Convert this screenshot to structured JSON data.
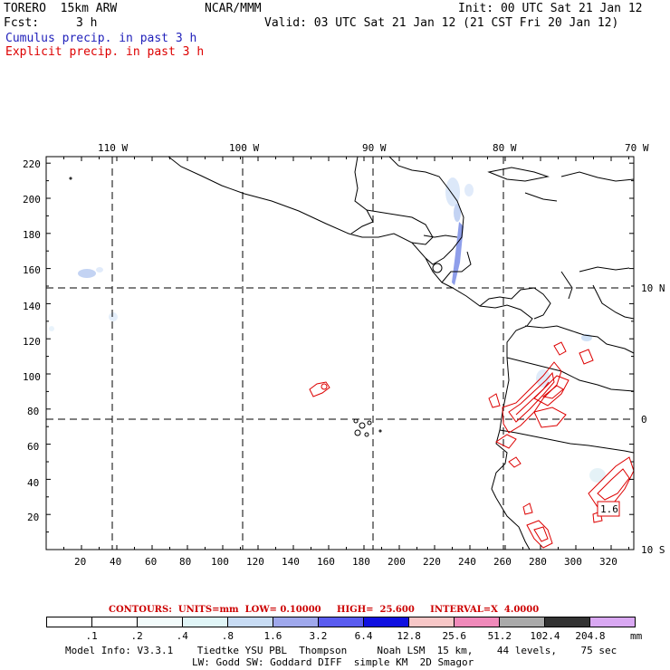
{
  "header": {
    "model": "TORERO  15km ARW",
    "center": "NCAR/MMM",
    "init": "Init: 00 UTC Sat 21 Jan 12",
    "fcst_label": "Fcst:",
    "fcst_value": "3 h",
    "valid": "Valid: 03 UTC Sat 21 Jan 12 (21 CST Fri 20 Jan 12)",
    "field1": "Cumulus precip. in past 3 h",
    "field2": "Explicit precip. in past 3 h",
    "field1_color": "#2222bb",
    "field2_color": "#dd0000"
  },
  "map": {
    "lon_labels": [
      "110 W",
      "100 W",
      "90 W",
      "80 W",
      "70 W"
    ],
    "lat_labels": [
      "10 N",
      "0",
      "10 S"
    ],
    "y_ticks": [
      "20",
      "40",
      "60",
      "80",
      "100",
      "120",
      "140",
      "160",
      "180",
      "200",
      "220"
    ],
    "x_ticks": [
      "20",
      "40",
      "60",
      "80",
      "100",
      "120",
      "140",
      "160",
      "180",
      "200",
      "220",
      "240",
      "260",
      "280",
      "300",
      "320"
    ],
    "max_label": "1.6"
  },
  "contours_line": {
    "label": "CONTOURS:  UNITS=mm  LOW= 0.10000     HIGH=  25.600     INTERVAL=X  4.0000",
    "color": "#cc0000"
  },
  "colorbar": {
    "thresholds": [
      ".1",
      ".2",
      ".4",
      ".8",
      "1.6",
      "3.2",
      "6.4",
      "12.8",
      "25.6",
      "51.2",
      "102.4",
      "204.8"
    ],
    "colors": [
      "#ffffff",
      "#ffffff",
      "#f2fbfb",
      "#e0f5f7",
      "#c8dcf4",
      "#9fa8ec",
      "#5a5cf0",
      "#1010e0",
      "#f7c7c7",
      "#f08aba",
      "#aaaaaa",
      "#333333",
      "#d9a8f2"
    ],
    "unit": "mm"
  },
  "footer": {
    "line1": "Model Info: V3.3.1    Tiedtke YSU PBL  Thompson     Noah LSM  15 km,    44 levels,    75 sec",
    "line2": "LW: Godd SW: Goddard DIFF  simple KM  2D Smagor"
  }
}
